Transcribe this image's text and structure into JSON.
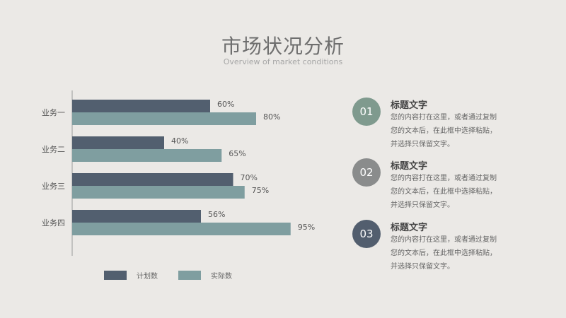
{
  "title": "市场状况分析",
  "subtitle": "Overview of market conditions",
  "colors": {
    "series1": "#525f6f",
    "series2": "#7f9ea0",
    "circle1": "#7f9a8e",
    "circle2": "#8a8c8c",
    "circle3": "#525e6e"
  },
  "chart_data": {
    "type": "bar",
    "orientation": "horizontal",
    "categories": [
      "业务一",
      "业务二",
      "业务三",
      "业务四"
    ],
    "series": [
      {
        "name": "计划数",
        "values": [
          60,
          40,
          70,
          56
        ],
        "labels": [
          "60%",
          "40%",
          "70%",
          "56%"
        ]
      },
      {
        "name": "实际数",
        "values": [
          80,
          65,
          75,
          95
        ],
        "labels": [
          "80%",
          "65%",
          "75%",
          "95%"
        ]
      }
    ],
    "xlim": [
      0,
      100
    ],
    "legend": "bottom",
    "grid": false
  },
  "legend": {
    "series1": "计划数",
    "series2": "实际数"
  },
  "items": [
    {
      "num": "01",
      "title": "标题文字",
      "text": "您的内容打在这里，或者通过复制您的文本后，在此框中选择粘贴，并选择只保留文字。"
    },
    {
      "num": "02",
      "title": "标题文字",
      "text": "您的内容打在这里，或者通过复制您的文本后，在此框中选择粘贴，并选择只保留文字。"
    },
    {
      "num": "03",
      "title": "标题文字",
      "text": "您的内容打在这里，或者通过复制您的文本后，在此框中选择粘贴，并选择只保留文字。"
    }
  ]
}
